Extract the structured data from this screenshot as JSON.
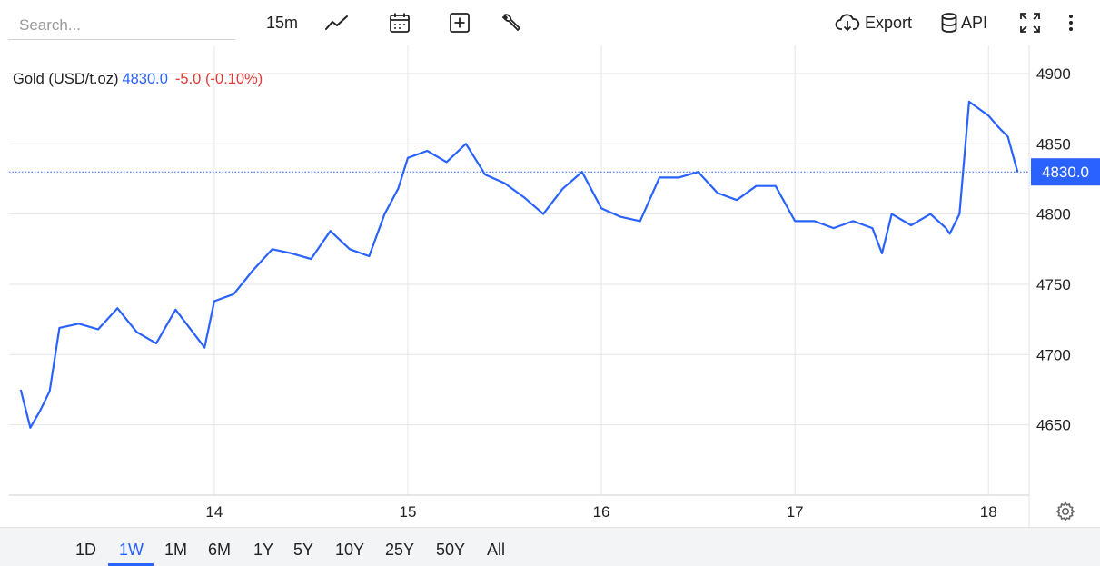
{
  "toolbar": {
    "search_placeholder": "Search...",
    "interval": "15m",
    "export_label": "Export",
    "api_label": "API",
    "icons": [
      "line-chart-icon",
      "calendar-icon",
      "add-indicator-icon",
      "wrench-icon",
      "cloud-download-icon",
      "database-icon",
      "fullscreen-icon",
      "more-vertical-icon"
    ]
  },
  "legend": {
    "symbol": "Gold (USD/t.oz)",
    "price": "4830.0",
    "change": "-5.0 (-0.10%)"
  },
  "price_tag": "4830.0",
  "ranges": {
    "items": [
      "1D",
      "1W",
      "1M",
      "6M",
      "1Y",
      "5Y",
      "10Y",
      "25Y",
      "50Y",
      "All"
    ],
    "active": "1W"
  },
  "colors": {
    "line": "#2962ff",
    "negative": "#e53935",
    "grid": "#e6e6e6",
    "axis_text": "#222222"
  },
  "chart_data": {
    "type": "line",
    "series": [
      {
        "x": [
          13.0,
          13.05,
          13.1,
          13.15,
          13.2,
          13.3,
          13.4,
          13.5,
          13.6,
          13.7,
          13.8,
          13.9,
          13.95,
          14.0,
          14.1,
          14.2,
          14.3,
          14.4,
          14.5,
          14.6,
          14.7,
          14.8,
          14.88,
          14.95,
          15.0,
          15.1,
          15.2,
          15.3,
          15.4,
          15.5,
          15.6,
          15.7,
          15.8,
          15.9,
          16.0,
          16.1,
          16.2,
          16.3,
          16.4,
          16.5,
          16.6,
          16.7,
          16.8,
          16.9,
          17.0,
          17.1,
          17.2,
          17.3,
          17.4,
          17.45,
          17.5,
          17.6,
          17.7,
          17.78,
          17.8,
          17.85,
          17.9,
          17.95,
          18.0,
          18.05,
          18.1,
          18.15
        ],
        "y": [
          4675,
          4648,
          4660,
          4674,
          4719,
          4722,
          4718,
          4733,
          4716,
          4708,
          4732,
          4714,
          4705,
          4738,
          4743,
          4760,
          4775,
          4772,
          4768,
          4788,
          4775,
          4770,
          4800,
          4818,
          4840,
          4845,
          4837,
          4850,
          4828,
          4822,
          4812,
          4800,
          4818,
          4830,
          4804,
          4798,
          4795,
          4826,
          4826,
          4830,
          4815,
          4810,
          4820,
          4820,
          4795,
          4795,
          4790,
          4795,
          4790,
          4772,
          4800,
          4792,
          4800,
          4790,
          4786,
          4800,
          4880,
          4875,
          4870,
          4862,
          4855,
          4830
        ]
      }
    ],
    "x_ticks": [
      "14",
      "15",
      "16",
      "17",
      "18"
    ],
    "x_tick_values": [
      14,
      15,
      16,
      17,
      18
    ],
    "x_range": [
      12.94,
      18.21
    ],
    "y_ticks": [
      "4650",
      "4700",
      "4750",
      "4800",
      "4850",
      "4900"
    ],
    "y_tick_values": [
      4650,
      4700,
      4750,
      4800,
      4850,
      4900
    ],
    "y_range": [
      4600,
      4920
    ],
    "current_value": 4830.0,
    "grid": true
  }
}
